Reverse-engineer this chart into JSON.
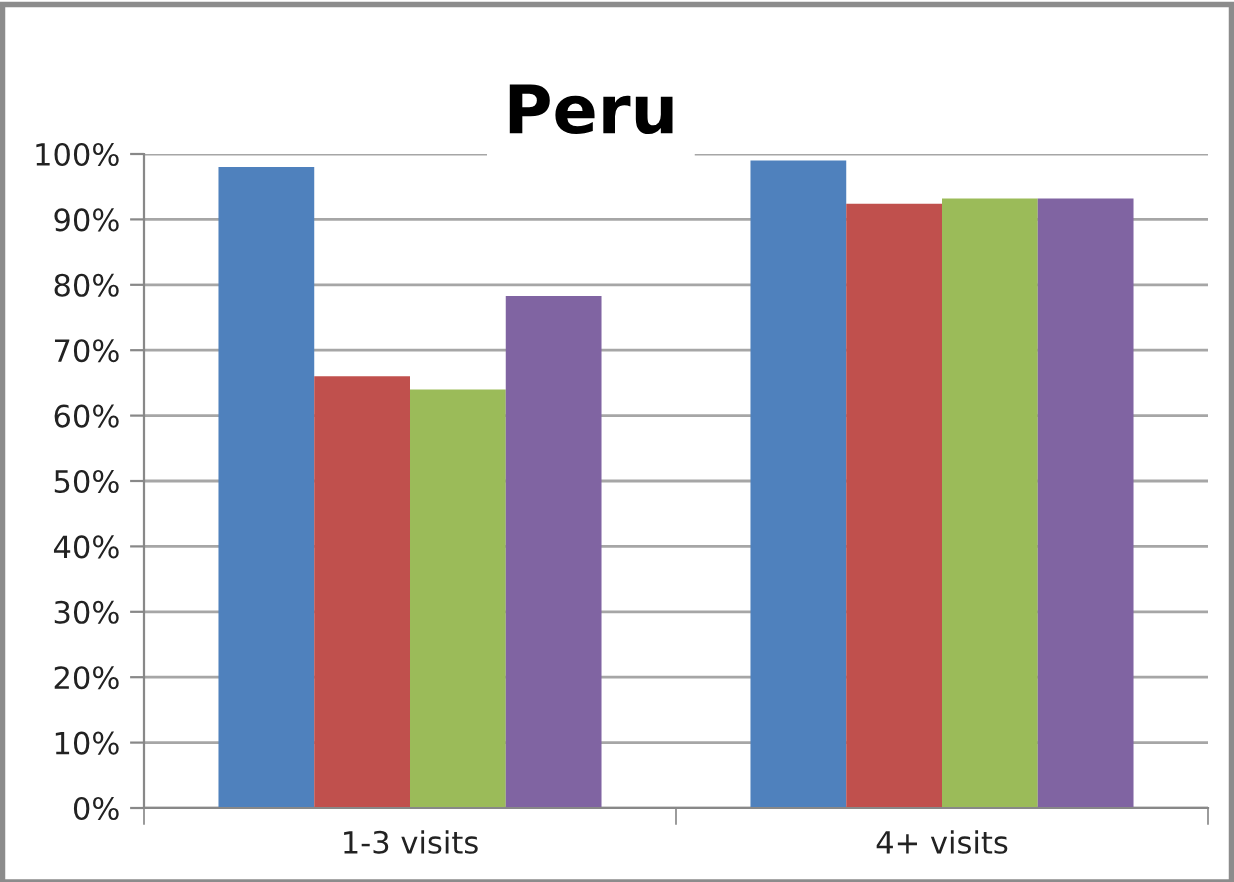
{
  "chart_data": {
    "type": "bar",
    "title": "Peru",
    "categories": [
      "1-3 visits",
      "4+ visits"
    ],
    "series": [
      {
        "color": "#4f81bd",
        "values": [
          98,
          99
        ]
      },
      {
        "color": "#c0504d",
        "values": [
          66,
          92.4
        ]
      },
      {
        "color": "#9bbb59",
        "values": [
          64,
          93.2
        ]
      },
      {
        "color": "#8064a2",
        "values": [
          78.3,
          93.2
        ]
      }
    ],
    "ylim": [
      0,
      100
    ],
    "yticks": [
      {
        "value": 0,
        "label": "0%"
      },
      {
        "value": 10,
        "label": "10%"
      },
      {
        "value": 20,
        "label": "20%"
      },
      {
        "value": 30,
        "label": "30%"
      },
      {
        "value": 40,
        "label": "40%"
      },
      {
        "value": 50,
        "label": "50%"
      },
      {
        "value": 60,
        "label": "60%"
      },
      {
        "value": 70,
        "label": "70%"
      },
      {
        "value": 80,
        "label": "80%"
      },
      {
        "value": 90,
        "label": "90%"
      },
      {
        "value": 100,
        "label": "100%"
      }
    ],
    "grid": "y"
  }
}
